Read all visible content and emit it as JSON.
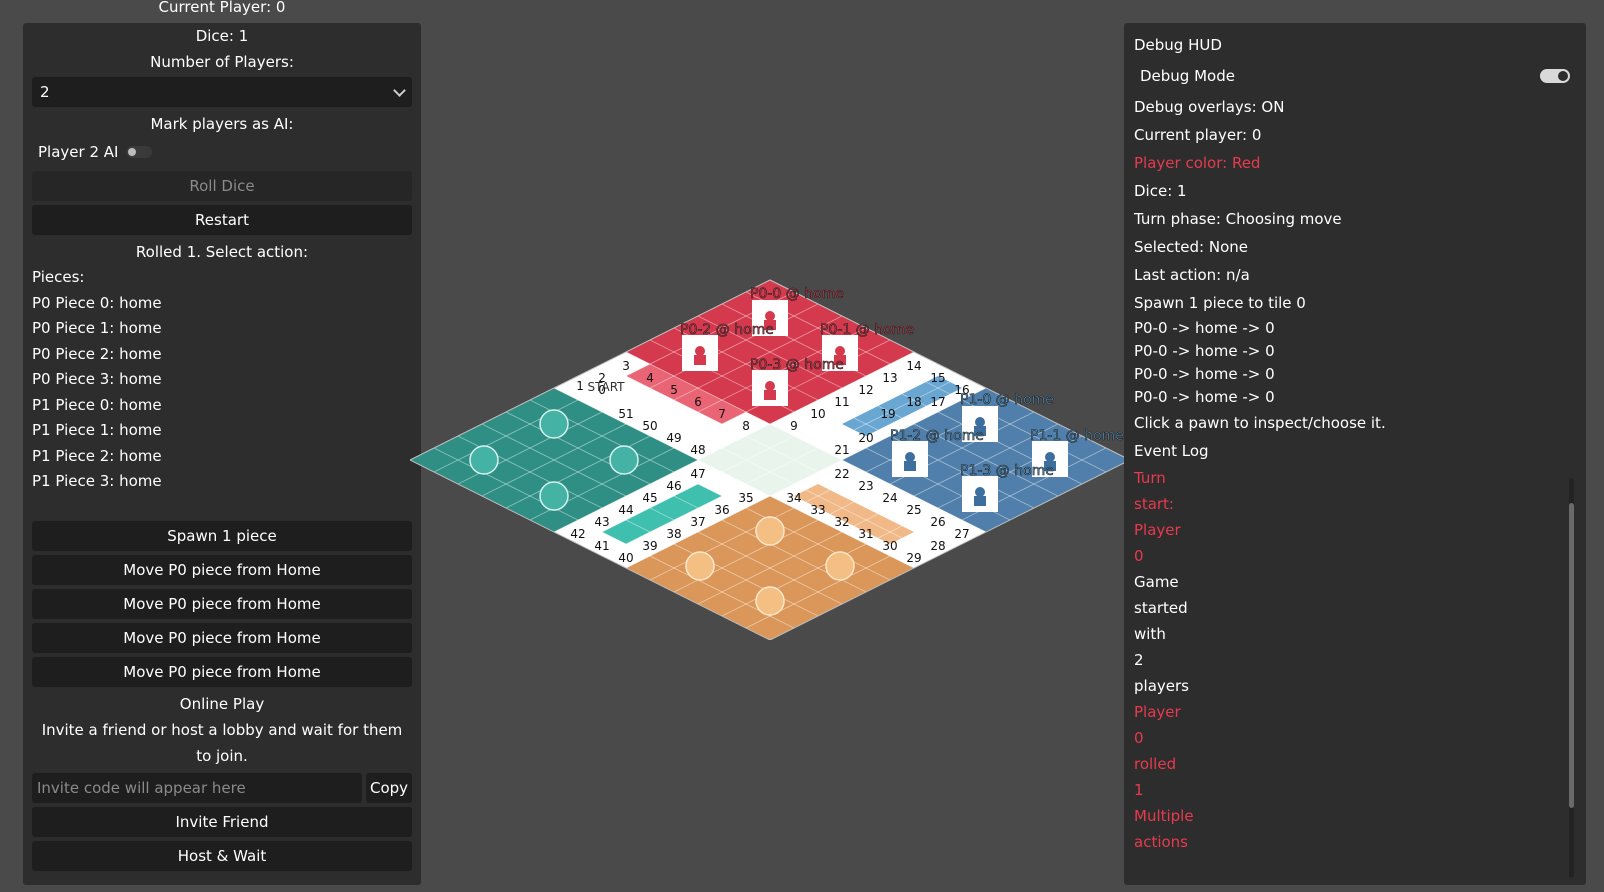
{
  "left_panel": {
    "top_cut_text": "Current Player: 0",
    "dice_label": "Dice: 1",
    "num_players_label": "Number of Players:",
    "num_players_value": "2",
    "ai_label": "Mark players as AI:",
    "ai_toggle_label": "Player 2 AI",
    "roll_button": "Roll Dice",
    "restart_button": "Restart",
    "status": "Rolled 1. Select action:",
    "pieces_heading": "Pieces:",
    "pieces": [
      "P0 Piece 0: home",
      "P0 Piece 1: home",
      "P0 Piece 2: home",
      "P0 Piece 3: home",
      "P1 Piece 0: home",
      "P1 Piece 1: home",
      "P1 Piece 2: home",
      "P1 Piece 3: home"
    ],
    "actions": [
      "Spawn 1 piece",
      "Move P0 piece from Home",
      "Move P0 piece from Home",
      "Move P0 piece from Home",
      "Move P0 piece from Home"
    ],
    "online_heading": "Online Play",
    "online_desc": "Invite a friend or host a lobby and wait for them to join.",
    "invite_placeholder": "Invite code will appear here",
    "copy_button": "Copy",
    "invite_button": "Invite Friend",
    "host_button": "Host & Wait"
  },
  "board": {
    "start_label": "START",
    "colors": {
      "red": "#d4394d",
      "blue": "#4f7faa",
      "teal": "#2f8f85",
      "orange": "#db975a",
      "path": "#ffffff",
      "center": "#e9f5ec"
    },
    "piece_labels": {
      "p0_0": "P0-0 @ home",
      "p0_1": "P0-1 @ home",
      "p0_2": "P0-2 @ home",
      "p0_3": "P0-3 @ home",
      "p1_0": "P1-0 @ home",
      "p1_1": "P1-1 @ home",
      "p1_2": "P1-2 @ home",
      "p1_3": "P1-3 @ home"
    }
  },
  "hud": {
    "title": "Debug HUD",
    "debug_mode_label": "Debug Mode",
    "debug_mode_on": true,
    "overlays": "Debug overlays: ON",
    "current_player": "Current player: 0",
    "player_color": "Player color: Red",
    "dice": "Dice: 1",
    "turn_phase": "Turn phase: Choosing move",
    "selected": "Selected: None",
    "last_action": "Last action: n/a",
    "spawn_line": "Spawn 1 piece to tile 0",
    "moves": [
      "P0-0 -> home -> 0",
      "P0-0 -> home -> 0",
      "P0-0 -> home -> 0",
      "P0-0 -> home -> 0"
    ],
    "hint": "Click a pawn to inspect/choose it.",
    "event_log_title": "Event Log",
    "event_log": [
      {
        "text": "Turn",
        "red": true
      },
      {
        "text": "start:",
        "red": true
      },
      {
        "text": "Player",
        "red": true
      },
      {
        "text": "0",
        "red": true
      },
      {
        "text": "Game",
        "red": false
      },
      {
        "text": "started",
        "red": false
      },
      {
        "text": "with",
        "red": false
      },
      {
        "text": "2",
        "red": false
      },
      {
        "text": "players",
        "red": false
      },
      {
        "text": "Player",
        "red": true
      },
      {
        "text": "0",
        "red": true
      },
      {
        "text": "rolled",
        "red": true
      },
      {
        "text": "1",
        "red": true
      },
      {
        "text": "Multiple",
        "red": true
      },
      {
        "text": "actions",
        "red": true
      }
    ]
  }
}
